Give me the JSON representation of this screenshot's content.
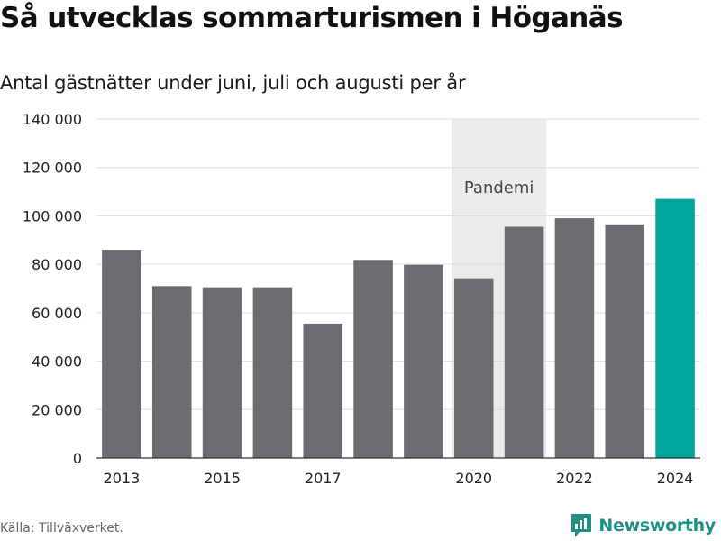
{
  "title": "Så utvecklas sommarturismen i Höganäs",
  "subtitle": "Antal gästnätter under juni, juli och augusti per år",
  "source": "Källa: Tillväxverket.",
  "brand": {
    "name": "Newsworthy",
    "icon": "newsworthy-logo-icon",
    "color": "#1f8f84"
  },
  "chart_data": {
    "type": "bar",
    "categories": [
      "2013",
      "2014",
      "2015",
      "2016",
      "2017",
      "2018",
      "2019",
      "2020",
      "2021",
      "2022",
      "2023",
      "2024"
    ],
    "x_tick_labels": [
      "2013",
      "2015",
      "2017",
      "2020",
      "2022",
      "2024"
    ],
    "values": [
      86000,
      71000,
      70500,
      70500,
      55500,
      81800,
      79800,
      74200,
      95500,
      99000,
      96500,
      107000
    ],
    "ylim": [
      0,
      140000
    ],
    "y_ticks": [
      0,
      20000,
      40000,
      60000,
      80000,
      100000,
      120000,
      140000
    ],
    "y_tick_labels": [
      "0",
      "20 000",
      "40 000",
      "60 000",
      "80 000",
      "100 000",
      "120 000",
      "140 000"
    ],
    "grid": true,
    "colors": {
      "bar": "#6c6b6f",
      "highlight": "#00a59b",
      "band": "#ebebeb",
      "grid": "#dddddd"
    },
    "highlight_category": "2024",
    "annotations": [
      {
        "type": "band",
        "from": "2020",
        "to": "2021",
        "label": "Pandemi"
      }
    ]
  }
}
